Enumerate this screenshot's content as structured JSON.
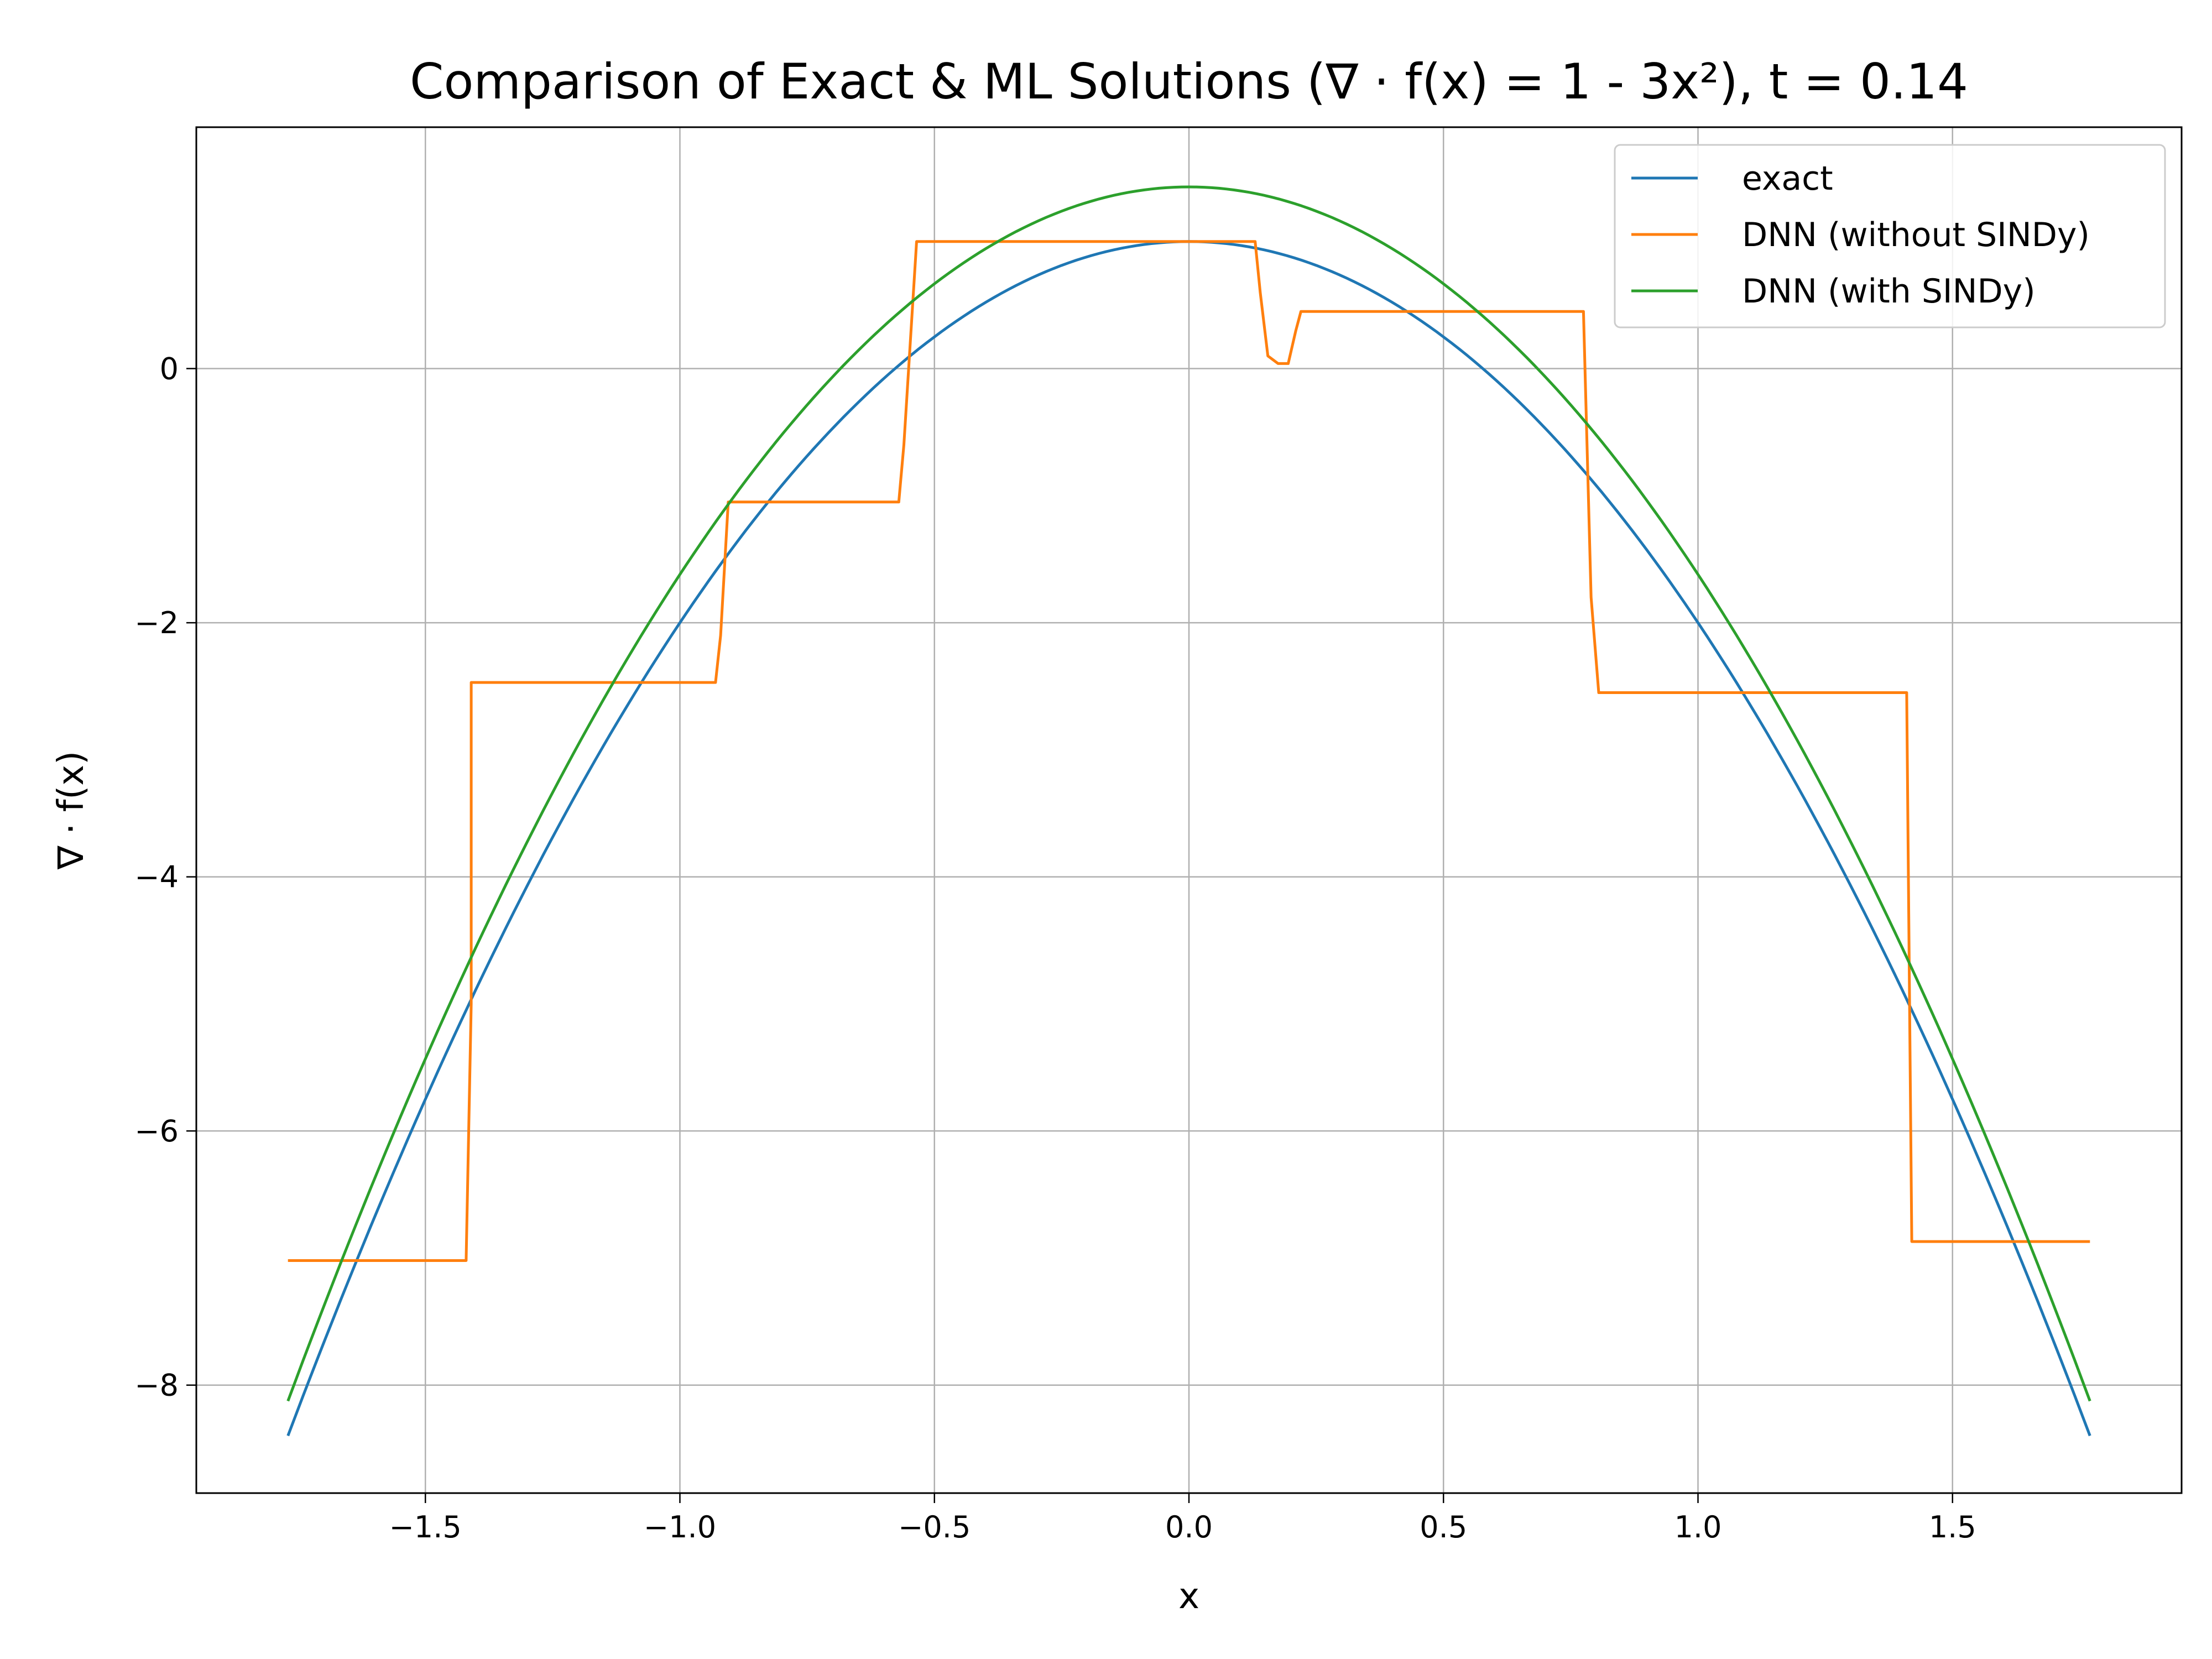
{
  "chart_data": {
    "type": "line",
    "title": "Comparison of Exact & ML Solutions (∇ · f(x) = 1 - 3x²), t = 0.14",
    "xlabel": "x",
    "ylabel": "∇ · f(x)",
    "xlim": [
      -1.95,
      1.95
    ],
    "ylim": [
      -8.85,
      1.9
    ],
    "grid": true,
    "legend_position": "top-right",
    "x_ticks": [
      -1.5,
      -1.0,
      -0.5,
      0.0,
      0.5,
      1.0,
      1.5
    ],
    "x_tick_labels": [
      "−1.5",
      "−1.0",
      "−0.5",
      "0.0",
      "0.5",
      "1.0",
      "1.5"
    ],
    "y_ticks": [
      0,
      -2,
      -4,
      -6,
      -8
    ],
    "y_tick_labels": [
      "0",
      "−2",
      "−4",
      "−6",
      "−8"
    ],
    "series": [
      {
        "name": "exact",
        "color": "#1f77b4",
        "formula": "1 - 3x^2",
        "x_range": [
          -1.77,
          1.77
        ]
      },
      {
        "name": "DNN (without SINDy)",
        "color": "#ff7f0e",
        "x": [
          -1.77,
          -1.42,
          -1.41,
          -1.41,
          -0.93,
          -0.92,
          -0.905,
          -0.57,
          -0.56,
          -0.535,
          0.13,
          0.14,
          0.155,
          0.175,
          0.195,
          0.21,
          0.22,
          0.775,
          0.78,
          0.79,
          0.805,
          1.41,
          1.42,
          1.77
        ],
        "y": [
          -7.02,
          -7.02,
          -5.0,
          -2.47,
          -2.47,
          -2.1,
          -1.05,
          -1.05,
          -0.6,
          1.0,
          1.0,
          0.6,
          0.1,
          0.04,
          0.04,
          0.3,
          0.45,
          0.45,
          -0.3,
          -1.8,
          -2.55,
          -2.55,
          -6.87,
          -6.87
        ]
      },
      {
        "name": "DNN (with SINDy)",
        "color": "#2ca02c",
        "formula": "1.43 - 3.05x^2",
        "x_range": [
          -1.77,
          1.77
        ]
      }
    ]
  }
}
